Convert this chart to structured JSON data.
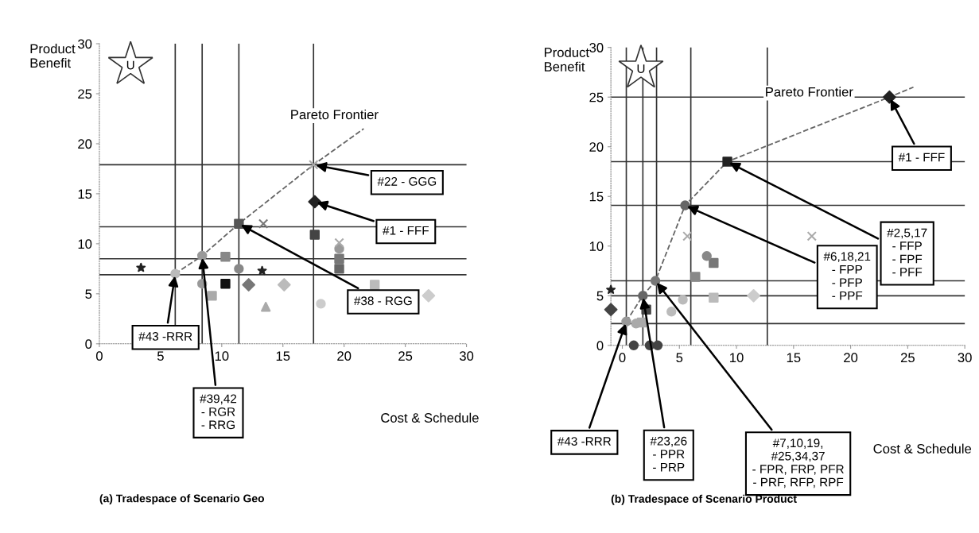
{
  "chart_data": [
    {
      "type": "scatter",
      "title": "(a) Tradespace of Scenario Geo",
      "xlabel": "Cost & Schedule",
      "ylabel": "Product\nBenefit",
      "xlim": [
        0,
        30
      ],
      "xticks": [
        0,
        5,
        10,
        15,
        20,
        25,
        30
      ],
      "ylim": [
        0,
        30
      ],
      "yticks": [
        0,
        5,
        10,
        15,
        20,
        25,
        30
      ],
      "series": [
        {
          "type": "line",
          "color": "#666666",
          "line_style": "dashed",
          "marker": "none",
          "x": [
            6.2,
            8.4,
            11.4,
            17.5,
            21.6
          ],
          "values": [
            7.0,
            8.8,
            12.0,
            17.9,
            21.5
          ]
        },
        {
          "marker": "square",
          "x": [
            11.4,
            17.6,
            10.3,
            10.3,
            9.2,
            22.5,
            19.6,
            19.6
          ],
          "values": [
            12.0,
            10.9,
            6.0,
            8.7,
            4.8,
            5.9,
            8.5,
            7.5
          ],
          "colors": [
            "#555555",
            "#444444",
            "#111111",
            "#888888",
            "#aaaaaa",
            "#bbbbbb",
            "#777777",
            "#666666"
          ]
        },
        {
          "marker": "diamond",
          "x": [
            17.6,
            12.2,
            26.9,
            15.1
          ],
          "values": [
            14.2,
            5.9,
            4.8,
            5.9
          ],
          "colors": [
            "#222222",
            "#777777",
            "#cccccc",
            "#bbbbbb"
          ]
        },
        {
          "marker": "circle",
          "x": [
            6.2,
            8.4,
            11.4,
            18.1,
            8.4,
            19.6
          ],
          "values": [
            7.0,
            8.8,
            7.5,
            4.0,
            6.0,
            9.5
          ],
          "colors": [
            "#bbbbbb",
            "#999999",
            "#888888",
            "#cccccc",
            "#999999",
            "#999999"
          ]
        },
        {
          "marker": "star",
          "x": [
            3.4,
            13.3
          ],
          "values": [
            7.6,
            7.3
          ],
          "colors": [
            "#222222",
            "#222222"
          ]
        },
        {
          "marker": "cross",
          "x": [
            17.5,
            13.4,
            19.6
          ],
          "values": [
            17.9,
            12.0,
            10.1
          ],
          "colors": [
            "#aaaaaa",
            "#777777",
            "#aaaaaa"
          ]
        },
        {
          "marker": "triangle",
          "x": [
            13.6
          ],
          "values": [
            3.7
          ],
          "colors": [
            "#aaaaaa"
          ]
        }
      ],
      "ref_lines": [
        {
          "axis": "y",
          "value": 6.9,
          "color": "#333333",
          "line_style": "solid"
        },
        {
          "axis": "y",
          "value": 8.5,
          "color": "#333333",
          "line_style": "solid"
        },
        {
          "axis": "y",
          "value": 11.7,
          "color": "#333333",
          "line_style": "solid"
        },
        {
          "axis": "y",
          "value": 17.9,
          "color": "#333333",
          "line_style": "solid"
        },
        {
          "axis": "x",
          "value": 6.2,
          "color": "#333333",
          "line_style": "solid"
        },
        {
          "axis": "x",
          "value": 8.4,
          "color": "#333333",
          "line_style": "solid"
        },
        {
          "axis": "x",
          "value": 11.4,
          "color": "#333333",
          "line_style": "solid"
        },
        {
          "axis": "x",
          "value": 17.5,
          "color": "#333333",
          "line_style": "solid"
        }
      ],
      "annotations": [
        "Pareto Frontier",
        "U",
        {
          "text": "#43 -RRR",
          "x": 6.2,
          "y": 7.0
        },
        {
          "text": "#39,42\n- RGR\n- RRG",
          "x": 8.4,
          "y": 8.8
        },
        {
          "text": "#38 - RGG",
          "x": 11.4,
          "y": 12.0
        },
        {
          "text": "#22 - GGG",
          "x": 17.5,
          "y": 17.9
        },
        {
          "text": "#1 - FFF",
          "x": 17.6,
          "y": 14.2
        }
      ]
    },
    {
      "type": "scatter",
      "title": "(b) Tradespace of Scenario Product",
      "xlabel": "Cost & Schedule",
      "ylabel": "Product\nBenefit",
      "xlim": [
        -1,
        30
      ],
      "xticks": [
        0,
        5,
        10,
        15,
        20,
        25,
        30
      ],
      "ylim": [
        0,
        30
      ],
      "yticks": [
        0,
        5,
        10,
        15,
        20,
        25,
        30
      ],
      "series": [
        {
          "type": "line",
          "color": "#666666",
          "line_style": "dashed",
          "marker": "none",
          "x": [
            0.35,
            1.8,
            2.9,
            5.5,
            9.2,
            23.4,
            25.5
          ],
          "values": [
            2.4,
            5.0,
            6.5,
            14.1,
            18.5,
            25.0,
            26.0
          ]
        },
        {
          "marker": "square",
          "x": [
            9.2,
            2.1,
            8.0,
            8.0,
            6.4,
            1.7
          ],
          "values": [
            18.5,
            3.6,
            8.3,
            4.8,
            6.9,
            2.3
          ],
          "colors": [
            "#222222",
            "#444444",
            "#777777",
            "#bbbbbb",
            "#888888",
            "#aaaaaa"
          ]
        },
        {
          "marker": "diamond",
          "x": [
            23.4,
            -1.0,
            11.5
          ],
          "values": [
            25.0,
            3.6,
            5.0
          ],
          "colors": [
            "#222222",
            "#444444",
            "#cccccc"
          ]
        },
        {
          "marker": "circle",
          "x": [
            5.5,
            2.9,
            1.8,
            0.35,
            4.3,
            5.3,
            7.4,
            1.2,
            1.0,
            2.4,
            3.1
          ],
          "values": [
            14.1,
            6.5,
            5.0,
            2.4,
            3.4,
            4.6,
            9.0,
            2.2,
            0,
            0,
            0
          ],
          "colors": [
            "#666666",
            "#777777",
            "#666666",
            "#999999",
            "#bbbbbb",
            "#bbbbbb",
            "#888888",
            "#aaaaaa",
            "#444444",
            "#444444",
            "#444444"
          ]
        },
        {
          "marker": "star",
          "x": [
            -1.0
          ],
          "values": [
            5.6
          ],
          "colors": [
            "#222222"
          ]
        },
        {
          "marker": "cross",
          "x": [
            5.7,
            16.6
          ],
          "values": [
            11.0,
            11.0
          ],
          "colors": [
            "#aaaaaa",
            "#aaaaaa"
          ]
        }
      ],
      "ref_lines": [
        {
          "axis": "y",
          "value": 2.2,
          "color": "#333333",
          "line_style": "solid"
        },
        {
          "axis": "y",
          "value": 5.0,
          "color": "#333333",
          "line_style": "solid"
        },
        {
          "axis": "y",
          "value": 6.5,
          "color": "#333333",
          "line_style": "solid"
        },
        {
          "axis": "y",
          "value": 14.1,
          "color": "#333333",
          "line_style": "solid"
        },
        {
          "axis": "y",
          "value": 18.5,
          "color": "#333333",
          "line_style": "solid"
        },
        {
          "axis": "y",
          "value": 25.0,
          "color": "#333333",
          "line_style": "solid"
        },
        {
          "axis": "x",
          "value": 0.35,
          "color": "#333333",
          "line_style": "solid"
        },
        {
          "axis": "x",
          "value": 1.8,
          "color": "#333333",
          "line_style": "solid"
        },
        {
          "axis": "x",
          "value": 3.0,
          "color": "#333333",
          "line_style": "solid"
        },
        {
          "axis": "x",
          "value": 6.0,
          "color": "#333333",
          "line_style": "solid"
        },
        {
          "axis": "x",
          "value": 12.7,
          "color": "#333333",
          "line_style": "solid"
        }
      ],
      "annotations": [
        "Pareto Frontier",
        "U",
        {
          "text": "#43 -RRR",
          "x": 0.35,
          "y": 2.4
        },
        {
          "text": "#23,26\n- PPR\n- PRP",
          "x": 1.8,
          "y": 5.0
        },
        {
          "text": "#7,10,19,\n#25,34,37\n- FPR, FRP, PFR\n- PRF, RFP, RPF",
          "x": 2.9,
          "y": 6.5
        },
        {
          "text": "#6,18,21\n- FPP\n- PFP\n- PPF",
          "x": 5.5,
          "y": 14.1
        },
        {
          "text": "#2,5,17\n- FFP\n- FPF\n- PFF",
          "x": 9.2,
          "y": 18.5
        },
        {
          "text": "#1 - FFF",
          "x": 23.4,
          "y": 25.0
        }
      ]
    }
  ]
}
